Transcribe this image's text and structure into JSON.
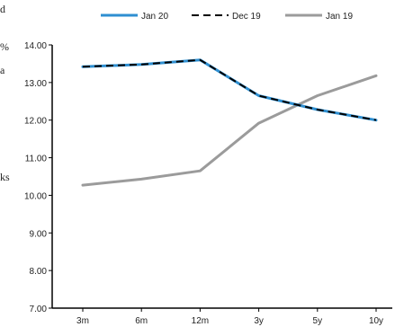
{
  "side_text": [
    "d",
    "%",
    "a",
    "ks"
  ],
  "chart_data": {
    "type": "line",
    "title": "",
    "xlabel": "",
    "ylabel": "",
    "categories": [
      "3m",
      "6m",
      "12m",
      "3y",
      "5y",
      "10y"
    ],
    "ylim": [
      7.0,
      14.0
    ],
    "yticks": [
      "7.00",
      "8.00",
      "9.00",
      "10.00",
      "11.00",
      "12.00",
      "13.00",
      "14.00"
    ],
    "grid": false,
    "legend": "top",
    "series": [
      {
        "name": "Jan 20",
        "values": [
          13.42,
          13.48,
          13.6,
          12.65,
          12.28,
          12.0
        ],
        "color": "#2e8fd1",
        "style": "solid"
      },
      {
        "name": "Dec 19",
        "values": [
          13.42,
          13.48,
          13.6,
          12.65,
          12.28,
          12.0
        ],
        "color": "#000000",
        "style": "dashed"
      },
      {
        "name": "Jan 19",
        "values": [
          10.27,
          10.43,
          10.65,
          11.92,
          12.65,
          13.18
        ],
        "color": "#9b9b9b",
        "style": "solid"
      }
    ]
  }
}
